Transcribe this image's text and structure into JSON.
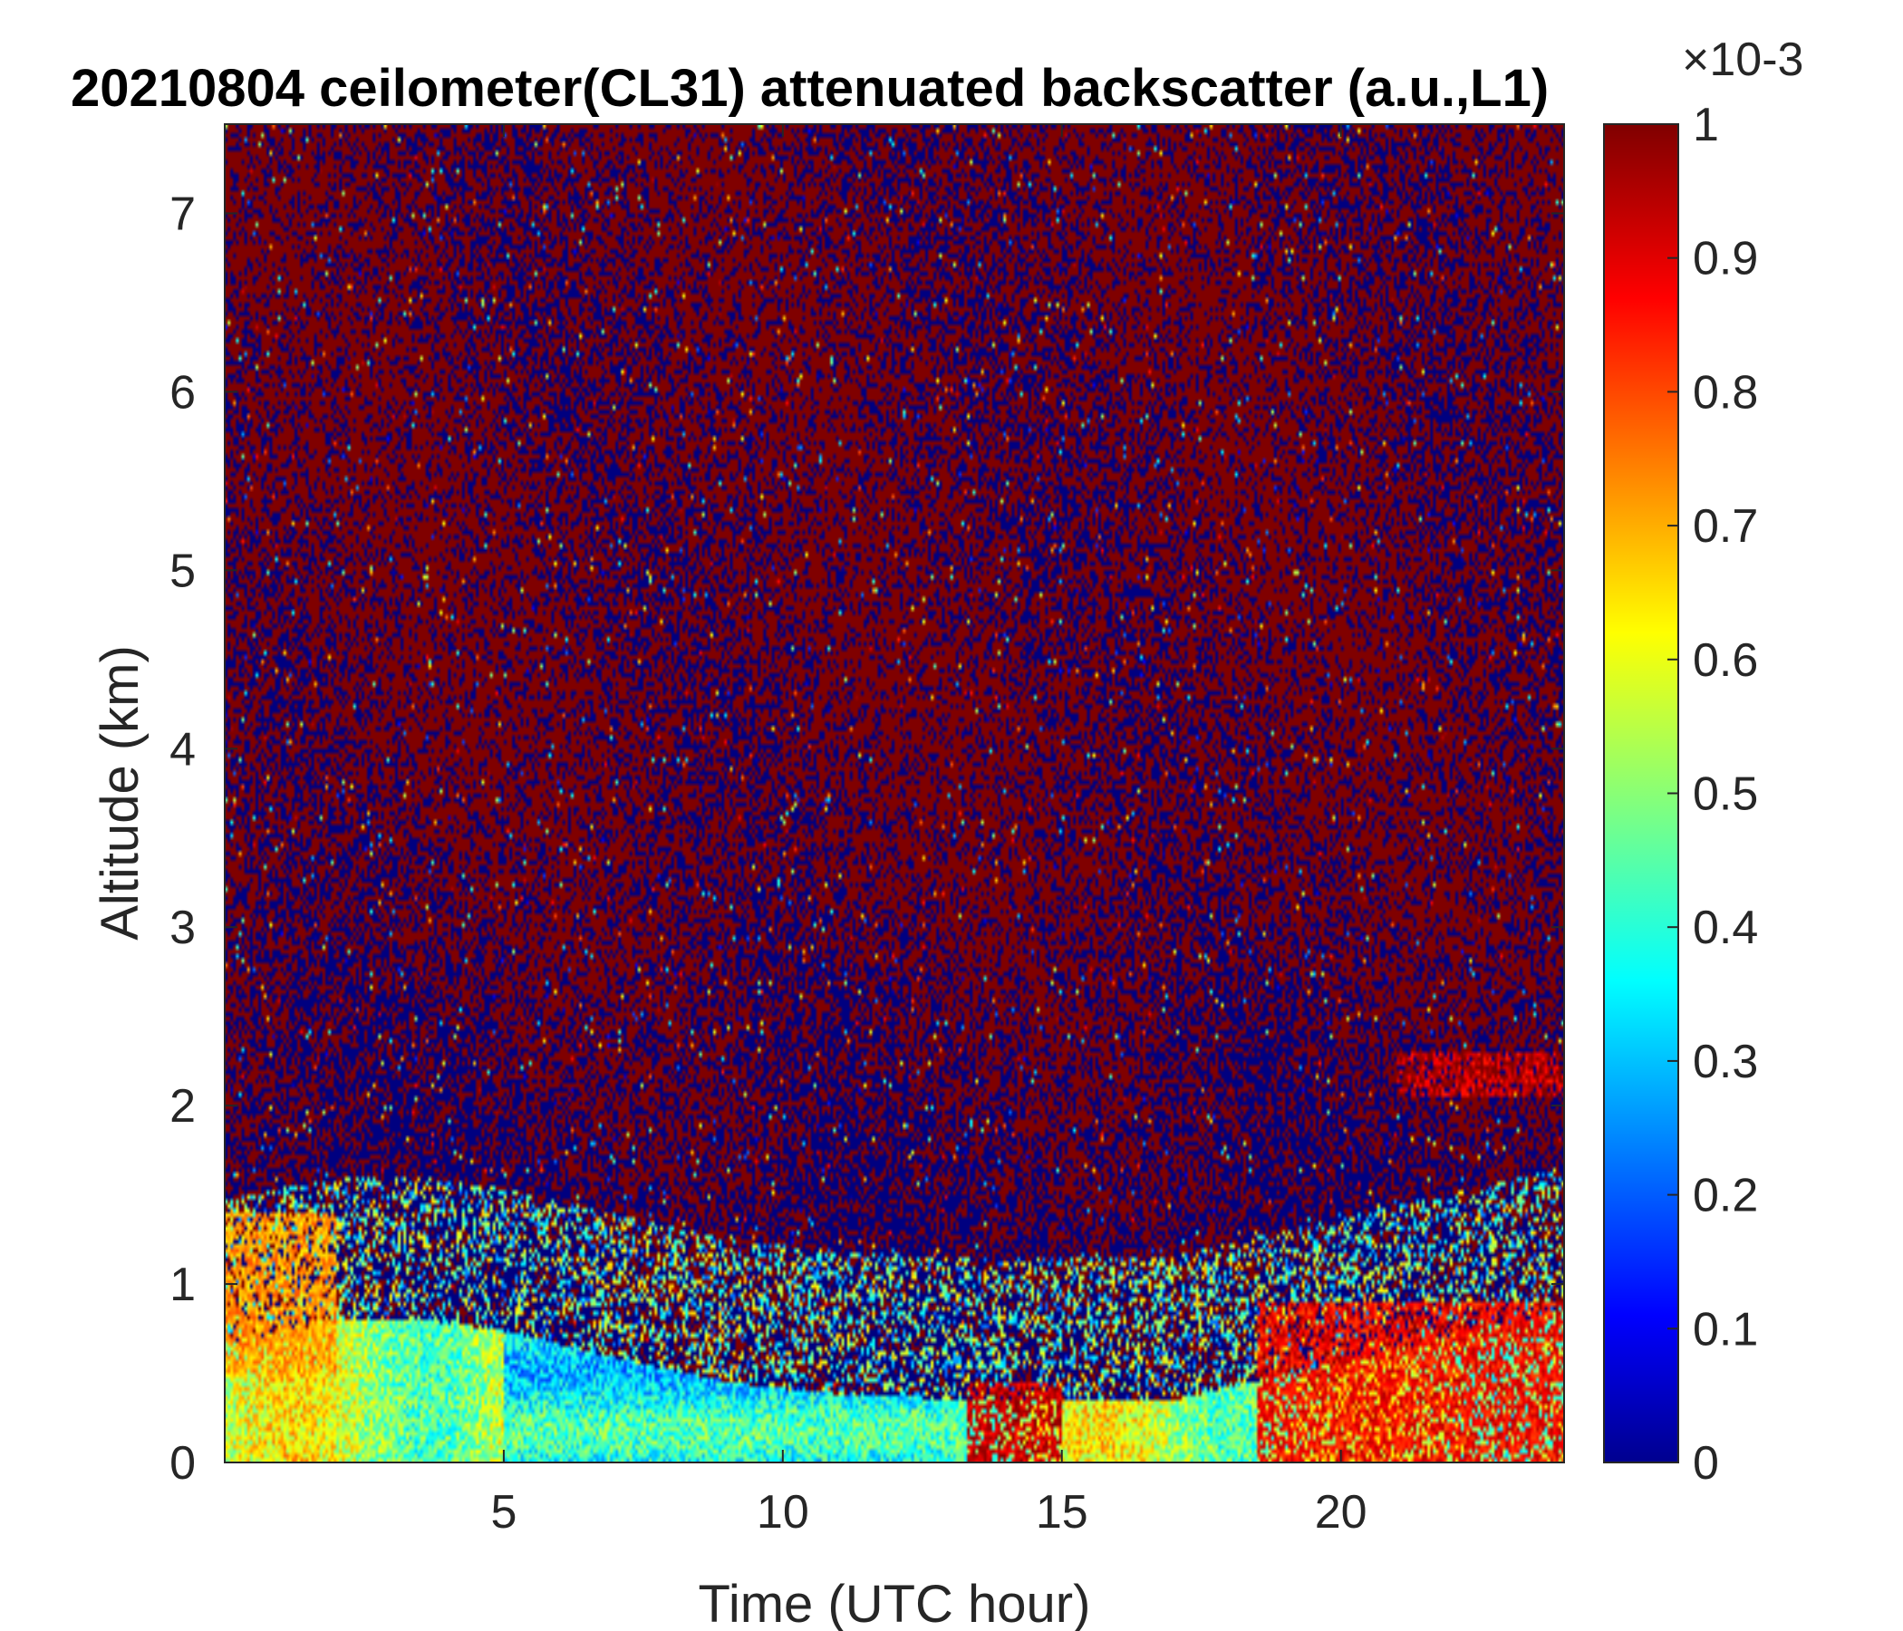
{
  "chart_data": {
    "type": "heatmap",
    "title": "20210804 ceilometer(CL31) attenuated backscatter (a.u.,L1)",
    "xlabel": "Time (UTC hour)",
    "ylabel": "Altitude (km)",
    "xlim": [
      0,
      24
    ],
    "ylim": [
      0,
      7.5
    ],
    "xticks": [
      5,
      10,
      15,
      20
    ],
    "yticks": [
      0,
      1,
      2,
      3,
      4,
      5,
      6,
      7
    ],
    "colorbar": {
      "colormap": "jet",
      "range": [
        0,
        1
      ],
      "ticks": [
        0,
        0.1,
        0.2,
        0.3,
        0.4,
        0.5,
        0.6,
        0.7,
        0.8,
        0.9,
        1
      ],
      "exponent_label": "×10-3"
    },
    "features": [
      {
        "description": "near-surface aerosol layer, high backscatter",
        "x_range": [
          0,
          24
        ],
        "y_range": [
          0,
          0.5
        ],
        "value": 0.65
      },
      {
        "description": "elevated layer early morning",
        "x_range": [
          0,
          2
        ],
        "y_range": [
          0.5,
          1.4
        ],
        "value": 0.8
      },
      {
        "description": "strong backscatter near surface",
        "x_range": [
          13.3,
          15
        ],
        "y_range": [
          0,
          0.45
        ],
        "value": 1.0
      },
      {
        "description": "evening boundary layer",
        "x_range": [
          18.5,
          24
        ],
        "y_range": [
          0,
          0.9
        ],
        "value": 0.95
      },
      {
        "description": "cloud/aerosol band",
        "x_range": [
          21,
          24
        ],
        "y_range": [
          2.05,
          2.3
        ],
        "value": 1.0
      },
      {
        "description": "noise above boundary layer",
        "x_range": [
          0,
          24
        ],
        "y_range": [
          1.5,
          7.5
        ],
        "value": "mixed 0 and 1"
      }
    ]
  }
}
